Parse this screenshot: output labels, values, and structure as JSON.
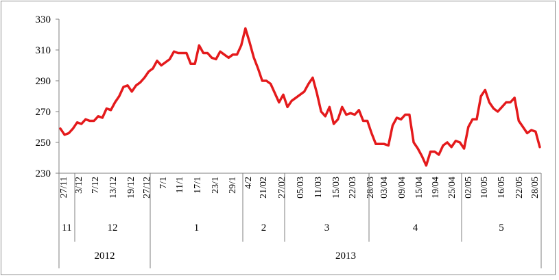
{
  "chart_data": {
    "type": "line",
    "title": "",
    "xlabel": "",
    "ylabel": "",
    "ylim": [
      230,
      330
    ],
    "yticks": [
      230,
      250,
      270,
      290,
      310,
      330
    ],
    "grid": false,
    "legend": "none",
    "series": [
      {
        "color": "#e41a1c",
        "values": [
          259,
          255,
          256,
          259,
          263,
          262,
          265,
          264,
          264,
          267,
          266,
          272,
          271,
          276,
          280,
          286,
          287,
          283,
          287,
          289,
          292,
          296,
          298,
          303,
          300,
          302,
          304,
          309,
          308,
          308,
          308,
          301,
          301,
          313,
          308,
          308,
          305,
          304,
          309,
          307,
          305,
          307,
          307,
          313,
          324,
          315,
          305,
          298,
          290,
          290,
          288,
          282,
          276,
          281,
          273,
          277,
          279,
          281,
          283,
          288,
          292,
          282,
          270,
          267,
          273,
          262,
          265,
          273,
          268,
          269,
          268,
          271,
          264,
          264,
          256,
          249,
          249,
          249,
          248,
          261,
          266,
          265,
          268,
          268,
          250,
          246,
          241,
          235,
          244,
          244,
          242,
          248,
          250,
          247,
          251,
          250,
          246,
          260,
          265,
          265,
          280,
          284,
          276,
          272,
          270,
          273,
          276,
          276,
          279,
          264,
          260,
          256,
          258,
          257,
          247
        ]
      }
    ],
    "date_labels": [
      "27/11",
      "3/12",
      "7/12",
      "13/12",
      "19/12",
      "27/12",
      "7/1",
      "11/1",
      "17/1",
      "23/1",
      "29/1",
      "4/2",
      "21/02",
      "27/02",
      "05/03",
      "11/03",
      "15/03",
      "22/03",
      "28/03",
      "03/04",
      "09/04",
      "15/04",
      "19/04",
      "25/04",
      "02/05",
      "10/05",
      "16/05",
      "22/05",
      "28/05"
    ],
    "month_labels": [
      "11",
      "12",
      "1",
      "2",
      "3",
      "4",
      "5"
    ],
    "year_labels": [
      "2012",
      "2013"
    ]
  }
}
